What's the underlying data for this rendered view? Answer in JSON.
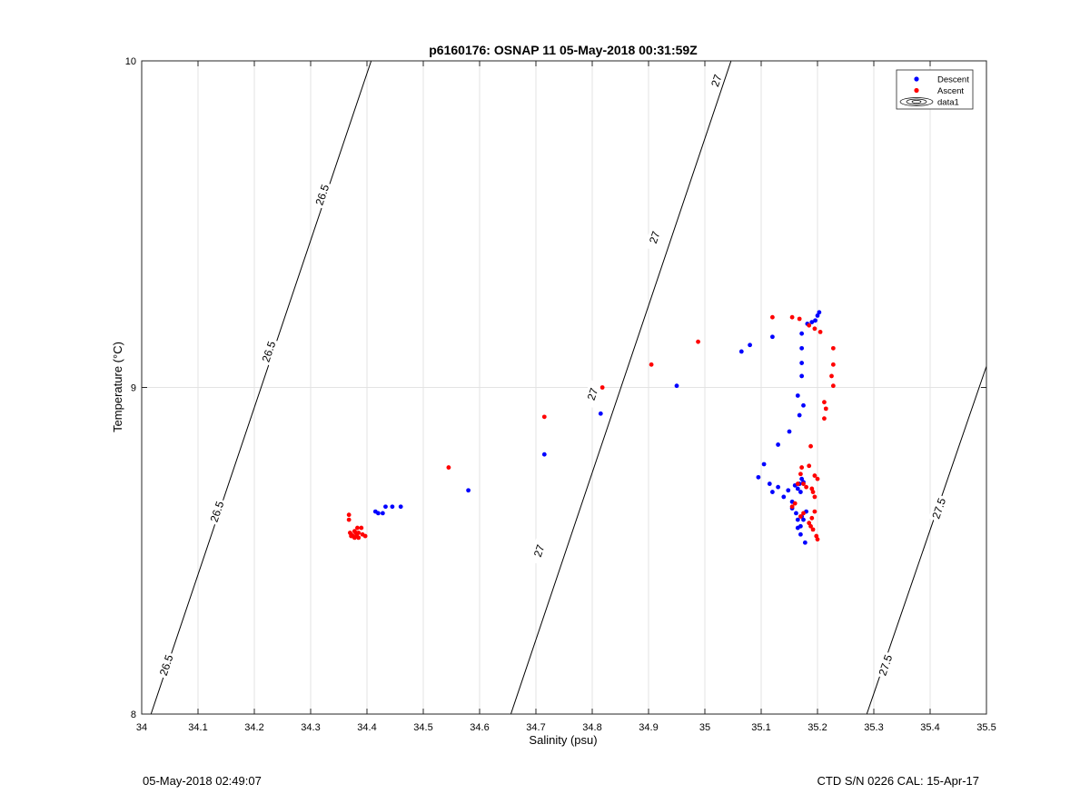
{
  "chart_data": {
    "type": "scatter",
    "title": "p6160176: OSNAP 11 05-May-2018 00:31:59Z",
    "xlabel": "Salinity (psu)",
    "ylabel": "Temperature (°C)",
    "xlim": [
      34,
      35.5
    ],
    "ylim": [
      8,
      10
    ],
    "x_ticks": [
      "34",
      "34.1",
      "34.2",
      "34.3",
      "34.4",
      "34.5",
      "34.6",
      "34.7",
      "34.8",
      "34.9",
      "35",
      "35.1",
      "35.2",
      "35.3",
      "35.4",
      "35.5"
    ],
    "x_tick_values": [
      34,
      34.1,
      34.2,
      34.3,
      34.4,
      34.5,
      34.6,
      34.7,
      34.8,
      34.9,
      35,
      35.1,
      35.2,
      35.3,
      35.4,
      35.5
    ],
    "y_ticks": [
      "8",
      "9",
      "10"
    ],
    "y_tick_values": [
      8,
      9,
      10
    ],
    "grid": true,
    "legend": {
      "position": "top-right",
      "entries": [
        "Descent",
        "Ascent",
        "data1"
      ]
    },
    "density_contours": [
      {
        "label": "26.5",
        "line": [
          [
            34.0165,
            8.0
          ],
          [
            34.4075,
            10.0
          ]
        ],
        "labels_at": [
          [
            34.043,
            8.15
          ],
          [
            34.133,
            8.62
          ],
          [
            34.225,
            9.11
          ],
          [
            34.32,
            9.59
          ]
        ]
      },
      {
        "label": "27",
        "line": [
          [
            34.6555,
            8.0
          ],
          [
            35.0465,
            10.0
          ]
        ],
        "labels_at": [
          [
            34.705,
            8.5
          ],
          [
            34.8,
            8.98
          ],
          [
            34.91,
            9.46
          ],
          [
            35.02,
            9.94
          ]
        ]
      },
      {
        "label": "27.5",
        "line": [
          [
            35.2875,
            8.0
          ],
          [
            35.5,
            9.065
          ]
        ],
        "labels_at": [
          [
            35.32,
            8.15
          ],
          [
            35.415,
            8.63
          ]
        ]
      }
    ],
    "series": [
      {
        "name": "Descent",
        "color": "#0000ff",
        "points": [
          [
            34.415,
            8.62
          ],
          [
            34.42,
            8.615
          ],
          [
            34.428,
            8.615
          ],
          [
            34.433,
            8.635
          ],
          [
            34.445,
            8.635
          ],
          [
            34.46,
            8.635
          ],
          [
            34.58,
            8.685
          ],
          [
            34.715,
            8.795
          ],
          [
            34.815,
            8.92
          ],
          [
            34.95,
            9.005
          ],
          [
            35.065,
            9.11
          ],
          [
            35.08,
            9.13
          ],
          [
            35.12,
            9.155
          ],
          [
            35.165,
            8.975
          ],
          [
            35.168,
            8.915
          ],
          [
            35.172,
            9.035
          ],
          [
            35.172,
            9.075
          ],
          [
            35.172,
            9.12
          ],
          [
            35.172,
            9.165
          ],
          [
            35.175,
            8.945
          ],
          [
            35.182,
            9.195
          ],
          [
            35.19,
            9.2
          ],
          [
            35.196,
            9.205
          ],
          [
            35.2,
            9.22
          ],
          [
            35.203,
            9.23
          ],
          [
            35.15,
            8.865
          ],
          [
            35.13,
            8.825
          ],
          [
            35.105,
            8.765
          ],
          [
            35.095,
            8.725
          ],
          [
            35.115,
            8.705
          ],
          [
            35.12,
            8.68
          ],
          [
            35.13,
            8.695
          ],
          [
            35.14,
            8.665
          ],
          [
            35.148,
            8.685
          ],
          [
            35.155,
            8.65
          ],
          [
            35.16,
            8.7
          ],
          [
            35.165,
            8.69
          ],
          [
            35.168,
            8.705
          ],
          [
            35.17,
            8.68
          ],
          [
            35.172,
            8.72
          ],
          [
            35.175,
            8.71
          ],
          [
            35.155,
            8.63
          ],
          [
            35.162,
            8.615
          ],
          [
            35.165,
            8.595
          ],
          [
            35.17,
            8.575
          ],
          [
            35.165,
            8.57
          ],
          [
            35.172,
            8.605
          ],
          [
            35.175,
            8.595
          ],
          [
            35.18,
            8.62
          ],
          [
            35.17,
            8.55
          ],
          [
            35.178,
            8.525
          ]
        ]
      },
      {
        "name": "Ascent",
        "color": "#ff0000",
        "points": [
          [
            34.368,
            8.61
          ],
          [
            34.368,
            8.595
          ],
          [
            34.37,
            8.555
          ],
          [
            34.372,
            8.55
          ],
          [
            34.375,
            8.545
          ],
          [
            34.378,
            8.56
          ],
          [
            34.38,
            8.555
          ],
          [
            34.382,
            8.545
          ],
          [
            34.385,
            8.555
          ],
          [
            34.383,
            8.57
          ],
          [
            34.39,
            8.57
          ],
          [
            34.392,
            8.55
          ],
          [
            34.397,
            8.545
          ],
          [
            34.372,
            8.545
          ],
          [
            34.378,
            8.54
          ],
          [
            34.385,
            8.54
          ],
          [
            34.545,
            8.755
          ],
          [
            34.715,
            8.91
          ],
          [
            34.818,
            9.0
          ],
          [
            34.905,
            9.07
          ],
          [
            34.988,
            9.14
          ],
          [
            35.12,
            9.215
          ],
          [
            35.155,
            9.215
          ],
          [
            35.168,
            9.21
          ],
          [
            35.185,
            9.19
          ],
          [
            35.195,
            9.18
          ],
          [
            35.205,
            9.17
          ],
          [
            35.228,
            9.12
          ],
          [
            35.228,
            9.07
          ],
          [
            35.225,
            9.035
          ],
          [
            35.228,
            9.005
          ],
          [
            35.212,
            8.955
          ],
          [
            35.215,
            8.935
          ],
          [
            35.212,
            8.905
          ],
          [
            35.188,
            8.82
          ],
          [
            35.185,
            8.76
          ],
          [
            35.172,
            8.755
          ],
          [
            35.17,
            8.735
          ],
          [
            35.165,
            8.705
          ],
          [
            35.175,
            8.705
          ],
          [
            35.18,
            8.695
          ],
          [
            35.195,
            8.73
          ],
          [
            35.2,
            8.72
          ],
          [
            35.19,
            8.69
          ],
          [
            35.192,
            8.68
          ],
          [
            35.195,
            8.665
          ],
          [
            35.16,
            8.645
          ],
          [
            35.155,
            8.635
          ],
          [
            35.195,
            8.62
          ],
          [
            35.19,
            8.6
          ],
          [
            35.185,
            8.585
          ],
          [
            35.188,
            8.575
          ],
          [
            35.192,
            8.565
          ],
          [
            35.198,
            8.545
          ],
          [
            35.2,
            8.535
          ],
          [
            35.175,
            8.615
          ],
          [
            35.17,
            8.605
          ]
        ]
      }
    ]
  },
  "footer": {
    "left": "05-May-2018 02:49:07",
    "right": "CTD S/N 0226  CAL: 15-Apr-17"
  }
}
